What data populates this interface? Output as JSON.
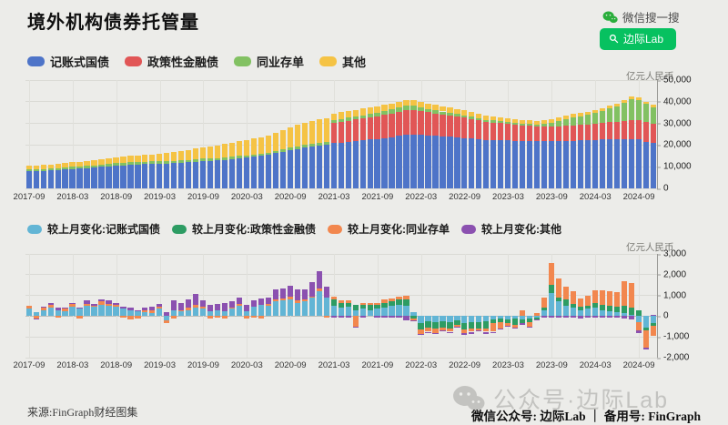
{
  "page": {
    "title": "境外机构债券托管量",
    "background": "#ECECE9"
  },
  "wechat": {
    "search_hint": "微信搜一搜",
    "search_button": "边际Lab",
    "brand_green": "#07C160"
  },
  "source": "来源:FinGraph财经图集",
  "watermark": "公众号·边际Lab",
  "footer": {
    "text": "微信公众号: 边际Lab ｜ 备用号: FinGraph"
  },
  "chart_data": [
    {
      "type": "bar",
      "stacked": true,
      "title": "境外机构债券托管量",
      "unit_label": "亿元人民币",
      "ylim": [
        0,
        50000
      ],
      "grid": true,
      "legend_position": "top",
      "y_ticks": {
        "values": [
          0,
          10000,
          20000,
          30000,
          40000,
          50000
        ],
        "labels": [
          "0",
          "10,000",
          "20,000",
          "30,000",
          "40,000",
          "50,000"
        ]
      },
      "x_tick_labels": [
        "2017-09",
        "2018-03",
        "2018-09",
        "2019-03",
        "2019-09",
        "2020-03",
        "2020-09",
        "2021-03",
        "2021-09",
        "2022-03",
        "2022-09",
        "2023-03",
        "2023-09",
        "2024-03",
        "2024-09"
      ],
      "months": [
        "2017-09",
        "2017-10",
        "2017-11",
        "2017-12",
        "2018-01",
        "2018-02",
        "2018-03",
        "2018-04",
        "2018-05",
        "2018-06",
        "2018-07",
        "2018-08",
        "2018-09",
        "2018-10",
        "2018-11",
        "2018-12",
        "2019-01",
        "2019-02",
        "2019-03",
        "2019-04",
        "2019-05",
        "2019-06",
        "2019-07",
        "2019-08",
        "2019-09",
        "2019-10",
        "2019-11",
        "2019-12",
        "2020-01",
        "2020-02",
        "2020-03",
        "2020-04",
        "2020-05",
        "2020-06",
        "2020-07",
        "2020-08",
        "2020-09",
        "2020-10",
        "2020-11",
        "2020-12",
        "2021-01",
        "2021-02",
        "2021-03",
        "2021-04",
        "2021-05",
        "2021-06",
        "2021-07",
        "2021-08",
        "2021-09",
        "2021-10",
        "2021-11",
        "2021-12",
        "2022-01",
        "2022-02",
        "2022-03",
        "2022-04",
        "2022-05",
        "2022-06",
        "2022-07",
        "2022-08",
        "2022-09",
        "2022-10",
        "2022-11",
        "2022-12",
        "2023-01",
        "2023-02",
        "2023-03",
        "2023-04",
        "2023-05",
        "2023-06",
        "2023-07",
        "2023-08",
        "2023-09",
        "2023-10",
        "2023-11",
        "2023-12",
        "2024-01",
        "2024-02",
        "2024-03",
        "2024-04",
        "2024-05",
        "2024-06",
        "2024-07",
        "2024-08",
        "2024-09",
        "2024-10",
        "2024-11"
      ],
      "series": [
        {
          "name": "记账式国债",
          "color": "#4E74C8",
          "values": [
            7800,
            7950,
            8100,
            8250,
            8450,
            8650,
            8900,
            9100,
            9350,
            9600,
            9950,
            10250,
            10500,
            10700,
            10900,
            11050,
            11150,
            11250,
            11400,
            11500,
            11650,
            11800,
            12000,
            12250,
            12500,
            12700,
            12900,
            13100,
            13400,
            13800,
            14100,
            14500,
            15000,
            15500,
            16200,
            16900,
            17600,
            18200,
            18800,
            19200,
            19800,
            20300,
            20800,
            21200,
            21600,
            21900,
            22200,
            22500,
            22800,
            23200,
            23700,
            24200,
            24700,
            24900,
            24600,
            24400,
            24200,
            24000,
            23800,
            23600,
            23300,
            23000,
            22700,
            22400,
            22300,
            22200,
            22100,
            22000,
            21900,
            21800,
            21750,
            21700,
            21700,
            21800,
            21900,
            22000,
            22100,
            22200,
            22400,
            22500,
            22600,
            22700,
            22800,
            22800,
            22500,
            21600,
            21000
          ]
        },
        {
          "name": "政策性金融债",
          "color": "#E15656",
          "values": [
            0,
            0,
            0,
            0,
            0,
            0,
            0,
            0,
            0,
            0,
            0,
            0,
            0,
            0,
            0,
            0,
            0,
            0,
            0,
            0,
            0,
            0,
            0,
            0,
            0,
            0,
            0,
            0,
            0,
            0,
            0,
            0,
            0,
            0,
            0,
            0,
            0,
            0,
            0,
            0,
            0,
            0,
            9300,
            9500,
            9700,
            9900,
            10100,
            10300,
            10500,
            10700,
            10900,
            11100,
            11400,
            11300,
            11000,
            10700,
            10400,
            10100,
            9800,
            9600,
            9300,
            9000,
            8700,
            8300,
            8100,
            7900,
            7700,
            7400,
            7200,
            7000,
            6900,
            6800,
            6800,
            6900,
            7000,
            7100,
            7200,
            7300,
            7500,
            7700,
            7900,
            8100,
            8400,
            8700,
            9000,
            8900,
            8800
          ]
        },
        {
          "name": "同业存单",
          "color": "#82C162",
          "values": [
            850,
            850,
            900,
            900,
            950,
            950,
            1000,
            1000,
            1050,
            1050,
            1100,
            1150,
            1200,
            1200,
            1150,
            1100,
            1100,
            1150,
            1200,
            1150,
            1100,
            1100,
            1150,
            1200,
            1250,
            1200,
            1150,
            1100,
            1100,
            1150,
            1100,
            1050,
            1000,
            1050,
            1100,
            1150,
            1200,
            1250,
            1300,
            1300,
            1250,
            1200,
            1300,
            1350,
            1400,
            1450,
            1500,
            1550,
            1600,
            1700,
            1800,
            1900,
            2000,
            1950,
            1800,
            1650,
            1500,
            1400,
            1300,
            1250,
            1200,
            1100,
            1050,
            1000,
            950,
            900,
            850,
            800,
            800,
            850,
            900,
            1200,
            1800,
            2400,
            3000,
            3600,
            3900,
            4400,
            5000,
            5600,
            6300,
            7000,
            8200,
            9800,
            9400,
            8600,
            7800
          ]
        },
        {
          "name": "其他",
          "color": "#F5C344",
          "values": [
            1700,
            1750,
            1800,
            1900,
            2000,
            2050,
            2100,
            2150,
            2300,
            2400,
            2500,
            2650,
            2750,
            2850,
            2950,
            3000,
            3100,
            3250,
            3400,
            3600,
            3950,
            4300,
            4600,
            4900,
            5200,
            5500,
            5800,
            6200,
            6500,
            6800,
            7100,
            7400,
            7700,
            8000,
            8500,
            9000,
            9400,
            9800,
            10100,
            10400,
            10700,
            11000,
            3200,
            3150,
            3100,
            3050,
            3000,
            3000,
            2950,
            2900,
            2850,
            2800,
            2600,
            2550,
            2500,
            2450,
            2400,
            2350,
            2300,
            2250,
            2150,
            2050,
            2000,
            1900,
            1850,
            1800,
            1780,
            1760,
            1730,
            1700,
            1680,
            1660,
            1640,
            1620,
            1600,
            1580,
            1500,
            1450,
            1400,
            1350,
            1300,
            1250,
            1150,
            1000,
            950,
            920,
            900
          ]
        }
      ]
    },
    {
      "type": "bar",
      "stacked": true,
      "title": "较上月变化",
      "unit_label": "亿元人民币",
      "ylim": [
        -2000,
        3000
      ],
      "grid": true,
      "legend_position": "top",
      "y_ticks": {
        "values": [
          -2000,
          -1000,
          0,
          1000,
          2000,
          3000
        ],
        "labels": [
          "-2,000",
          "-1,000",
          "0",
          "1,000",
          "2,000",
          "3,000"
        ]
      },
      "x_tick_labels": [
        "2017-09",
        "2018-03",
        "2018-09",
        "2019-03",
        "2019-09",
        "2020-03",
        "2020-09",
        "2021-03",
        "2021-09",
        "2022-03",
        "2022-09",
        "2023-03",
        "2023-09",
        "2024-03",
        "2024-09"
      ],
      "months": [
        "2017-09",
        "2017-10",
        "2017-11",
        "2017-12",
        "2018-01",
        "2018-02",
        "2018-03",
        "2018-04",
        "2018-05",
        "2018-06",
        "2018-07",
        "2018-08",
        "2018-09",
        "2018-10",
        "2018-11",
        "2018-12",
        "2019-01",
        "2019-02",
        "2019-03",
        "2019-04",
        "2019-05",
        "2019-06",
        "2019-07",
        "2019-08",
        "2019-09",
        "2019-10",
        "2019-11",
        "2019-12",
        "2020-01",
        "2020-02",
        "2020-03",
        "2020-04",
        "2020-05",
        "2020-06",
        "2020-07",
        "2020-08",
        "2020-09",
        "2020-10",
        "2020-11",
        "2020-12",
        "2021-01",
        "2021-02",
        "2021-03",
        "2021-04",
        "2021-05",
        "2021-06",
        "2021-07",
        "2021-08",
        "2021-09",
        "2021-10",
        "2021-11",
        "2021-12",
        "2022-01",
        "2022-02",
        "2022-03",
        "2022-04",
        "2022-05",
        "2022-06",
        "2022-07",
        "2022-08",
        "2022-09",
        "2022-10",
        "2022-11",
        "2022-12",
        "2023-01",
        "2023-02",
        "2023-03",
        "2023-04",
        "2023-05",
        "2023-06",
        "2023-07",
        "2023-08",
        "2023-09",
        "2023-10",
        "2023-11",
        "2023-12",
        "2024-01",
        "2024-02",
        "2024-03",
        "2024-04",
        "2024-05",
        "2024-06",
        "2024-07",
        "2024-08",
        "2024-09",
        "2024-10",
        "2024-11"
      ],
      "series": [
        {
          "name": "较上月变化:记账式国债",
          "color": "#62B5D5",
          "values": [
            350,
            200,
            300,
            400,
            300,
            250,
            450,
            350,
            500,
            450,
            550,
            500,
            450,
            350,
            300,
            250,
            200,
            150,
            350,
            -200,
            300,
            250,
            300,
            400,
            350,
            250,
            300,
            250,
            350,
            500,
            250,
            450,
            550,
            500,
            700,
            750,
            800,
            650,
            700,
            900,
            1200,
            900,
            500,
            400,
            450,
            300,
            350,
            300,
            350,
            400,
            500,
            550,
            500,
            200,
            -350,
            -250,
            -300,
            -250,
            -300,
            -200,
            -350,
            -300,
            -300,
            -250,
            -150,
            -100,
            -150,
            -100,
            -150,
            -100,
            -50,
            300,
            1100,
            700,
            500,
            400,
            300,
            350,
            400,
            300,
            250,
            200,
            150,
            50,
            -300,
            -550,
            -350
          ]
        },
        {
          "name": "较上月变化:政策性金融债",
          "color": "#2D9C63",
          "values": [
            0,
            0,
            0,
            0,
            0,
            0,
            0,
            0,
            0,
            0,
            0,
            0,
            0,
            0,
            0,
            0,
            0,
            0,
            0,
            0,
            0,
            0,
            0,
            0,
            0,
            0,
            0,
            0,
            0,
            0,
            0,
            0,
            0,
            0,
            0,
            0,
            0,
            0,
            0,
            0,
            0,
            0,
            300,
            250,
            200,
            250,
            200,
            250,
            200,
            250,
            200,
            250,
            300,
            -100,
            -300,
            -300,
            -300,
            -300,
            -300,
            -200,
            -300,
            -300,
            -300,
            -350,
            -200,
            -200,
            -200,
            -300,
            -200,
            -200,
            -100,
            100,
            400,
            200,
            300,
            200,
            150,
            150,
            250,
            250,
            250,
            250,
            350,
            350,
            300,
            -150,
            -100
          ]
        },
        {
          "name": "较上月变化:同业存单",
          "color": "#F2874E",
          "values": [
            150,
            -100,
            100,
            150,
            -50,
            100,
            150,
            -100,
            100,
            50,
            150,
            100,
            100,
            -50,
            -150,
            -100,
            100,
            150,
            100,
            -150,
            -100,
            50,
            100,
            150,
            100,
            -100,
            -50,
            -100,
            50,
            100,
            -100,
            -50,
            -100,
            100,
            100,
            100,
            150,
            100,
            100,
            50,
            150,
            -50,
            150,
            100,
            100,
            -500,
            100,
            100,
            100,
            150,
            150,
            150,
            200,
            -100,
            -200,
            -200,
            -200,
            -150,
            -150,
            -100,
            -150,
            -150,
            -100,
            -150,
            -400,
            -300,
            -100,
            -150,
            300,
            -200,
            150,
            500,
            1050,
            900,
            600,
            600,
            400,
            500,
            600,
            700,
            700,
            700,
            1200,
            1200,
            -400,
            -800,
            -500
          ]
        },
        {
          "name": "较上月变化:其他",
          "color": "#8B51B0",
          "values": [
            0,
            -50,
            50,
            100,
            100,
            50,
            50,
            50,
            150,
            100,
            100,
            150,
            100,
            100,
            100,
            50,
            100,
            150,
            150,
            200,
            450,
            350,
            400,
            500,
            300,
            300,
            300,
            400,
            300,
            300,
            300,
            300,
            300,
            300,
            500,
            500,
            500,
            550,
            500,
            700,
            800,
            500,
            -50,
            -50,
            -50,
            -50,
            -50,
            0,
            -50,
            -50,
            -50,
            -50,
            -200,
            -50,
            -50,
            -50,
            -50,
            -50,
            -50,
            -50,
            -100,
            -100,
            -50,
            -100,
            -50,
            -50,
            -50,
            -50,
            -50,
            -50,
            -50,
            -50,
            -50,
            -50,
            -50,
            -50,
            -100,
            -50,
            -50,
            -50,
            -50,
            -50,
            -100,
            -150,
            -100,
            -100,
            50
          ]
        }
      ]
    }
  ]
}
